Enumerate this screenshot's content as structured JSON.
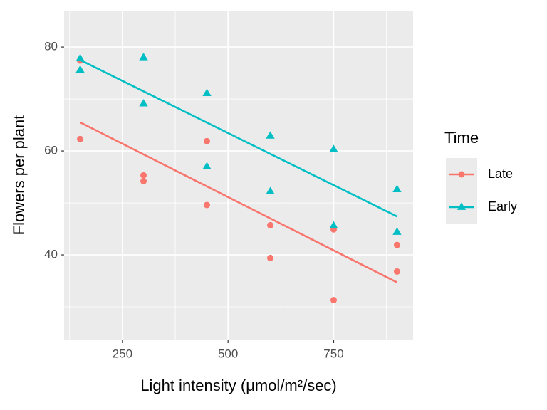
{
  "chart_data": {
    "type": "scatter",
    "x_label": "Light intensity (μmol/m²/sec)",
    "y_label": "Flowers per plant",
    "legend_title": "Time",
    "legend_position": "right",
    "grid": true,
    "xlim": [
      112,
      938
    ],
    "ylim": [
      23.7,
      87
    ],
    "xticks": [
      250,
      500,
      750
    ],
    "yticks": [
      40,
      60,
      80
    ],
    "x_minor_ticks": [
      125,
      375,
      625,
      875
    ],
    "y_minor_ticks": [
      30,
      50,
      70
    ],
    "series": [
      {
        "name": "Late",
        "color": "#F8766D",
        "marker": "circle",
        "x": [
          150,
          150,
          300,
          300,
          450,
          450,
          600,
          600,
          750,
          750,
          900,
          900
        ],
        "values": [
          62.3,
          77.4,
          55.3,
          54.2,
          49.6,
          61.9,
          39.4,
          45.7,
          31.3,
          44.9,
          36.8,
          41.9
        ],
        "fit": {
          "x": [
            150,
            900
          ],
          "values": [
            65.5,
            34.7
          ]
        }
      },
      {
        "name": "Early",
        "color": "#00BFC4",
        "marker": "triangle",
        "x": [
          150,
          150,
          300,
          300,
          450,
          450,
          600,
          600,
          750,
          750,
          900,
          900
        ],
        "values": [
          77.8,
          75.6,
          69.1,
          78.0,
          57.0,
          71.1,
          62.9,
          52.2,
          60.3,
          45.6,
          52.6,
          44.4
        ],
        "fit": {
          "x": [
            150,
            900
          ],
          "values": [
            77.5,
            47.4
          ]
        }
      }
    ]
  }
}
